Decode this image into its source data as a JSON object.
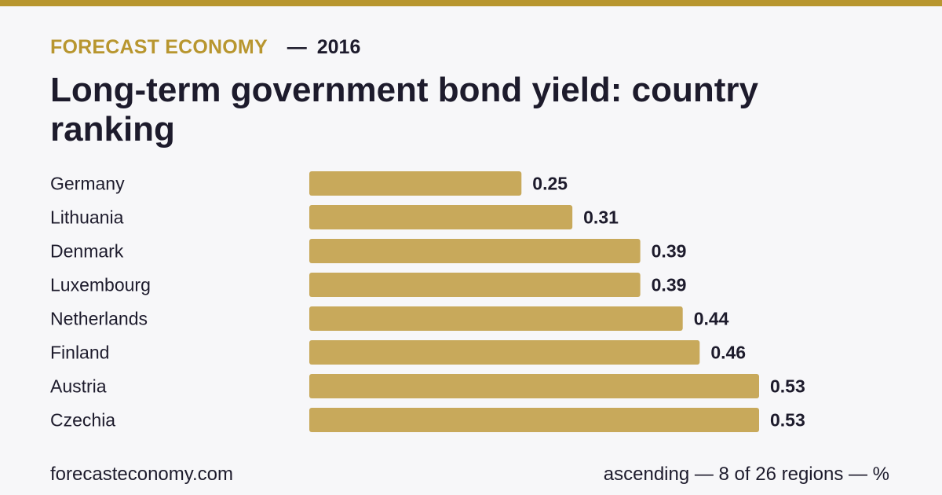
{
  "header": {
    "brand": "FORECAST ECONOMY",
    "separator": "—",
    "year": "2016",
    "title": "Long-term government bond yield: country ranking"
  },
  "footer": {
    "site": "forecasteconomy.com",
    "note": "ascending — 8 of 26 regions — %"
  },
  "colors": {
    "accent": "#b8962f",
    "bar": "#c8a95b",
    "text": "#1d1b2c",
    "background": "#f7f7f9"
  },
  "chart_data": {
    "type": "bar",
    "orientation": "horizontal",
    "categories": [
      "Germany",
      "Lithuania",
      "Denmark",
      "Luxembourg",
      "Netherlands",
      "Finland",
      "Austria",
      "Czechia"
    ],
    "values": [
      0.25,
      0.31,
      0.39,
      0.39,
      0.44,
      0.46,
      0.53,
      0.53
    ],
    "value_labels": [
      "0.25",
      "0.31",
      "0.39",
      "0.39",
      "0.44",
      "0.46",
      "0.53",
      "0.53"
    ],
    "title": "Long-term government bond yield: country ranking",
    "xlim": [
      0,
      0.53
    ],
    "grid": false,
    "legend": "none"
  }
}
